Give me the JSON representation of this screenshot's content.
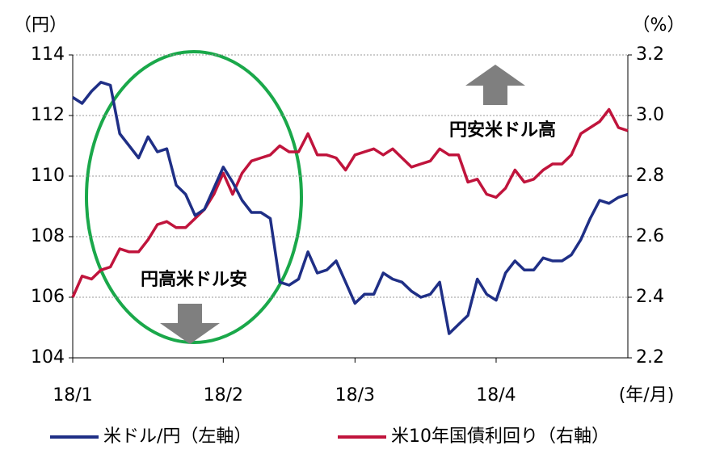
{
  "chart_data": {
    "type": "line",
    "y_unit_label": "（円）",
    "y2_unit_label": "（%）",
    "x_unit_label": "(年/月)",
    "annotations": [
      "円高米ドル安",
      "円安米ドル高"
    ],
    "categories": [
      "18/1",
      null,
      null,
      null,
      null,
      null,
      null,
      null,
      null,
      null,
      null,
      null,
      null,
      null,
      null,
      null,
      "18/2",
      null,
      null,
      null,
      null,
      null,
      null,
      null,
      null,
      null,
      null,
      null,
      null,
      null,
      "18/3",
      null,
      null,
      null,
      null,
      null,
      null,
      null,
      null,
      null,
      null,
      null,
      null,
      null,
      null,
      "18/4",
      null,
      null,
      null,
      null,
      null,
      null,
      null,
      null,
      null,
      null,
      null,
      null,
      null,
      null
    ],
    "series": [
      {
        "name": "米ドル/円（左軸）",
        "color": "#1f2f86",
        "values": [
          112.6,
          112.4,
          112.8,
          113.1,
          113.0,
          111.4,
          111.0,
          110.6,
          111.3,
          110.8,
          110.9,
          109.7,
          109.4,
          108.7,
          108.9,
          109.6,
          110.3,
          109.8,
          109.2,
          108.8,
          108.8,
          108.6,
          106.5,
          106.4,
          106.6,
          107.5,
          106.8,
          106.9,
          107.2,
          106.5,
          105.8,
          106.1,
          106.1,
          106.8,
          106.6,
          106.5,
          106.2,
          106.0,
          106.1,
          106.5,
          104.8,
          105.1,
          105.4,
          106.6,
          106.1,
          105.9,
          106.8,
          107.2,
          106.9,
          106.9,
          107.3,
          107.2,
          107.2,
          107.4,
          107.9,
          108.6,
          109.2,
          109.1,
          109.3,
          109.4
        ]
      },
      {
        "name": "米10年国債利回り（右軸）",
        "color": "#c0143c",
        "axis": "y2",
        "values": [
          2.4,
          2.47,
          2.46,
          2.49,
          2.5,
          2.56,
          2.55,
          2.55,
          2.59,
          2.64,
          2.65,
          2.63,
          2.63,
          2.66,
          2.69,
          2.74,
          2.81,
          2.74,
          2.81,
          2.85,
          2.86,
          2.87,
          2.9,
          2.88,
          2.88,
          2.94,
          2.87,
          2.87,
          2.86,
          2.82,
          2.87,
          2.88,
          2.89,
          2.87,
          2.89,
          2.86,
          2.83,
          2.84,
          2.85,
          2.89,
          2.87,
          2.87,
          2.78,
          2.79,
          2.74,
          2.73,
          2.76,
          2.82,
          2.78,
          2.79,
          2.82,
          2.84,
          2.84,
          2.87,
          2.94,
          2.96,
          2.98,
          3.02,
          2.96,
          2.95
        ]
      }
    ],
    "ylim": [
      104,
      114
    ],
    "yticks": [
      104,
      106,
      108,
      110,
      112,
      114
    ],
    "y2lim": [
      2.2,
      3.2
    ],
    "y2ticks": [
      2.2,
      2.4,
      2.6,
      2.8,
      {
        "value": 3,
        "label": "3.0"
      },
      3.2
    ],
    "grid": true
  }
}
